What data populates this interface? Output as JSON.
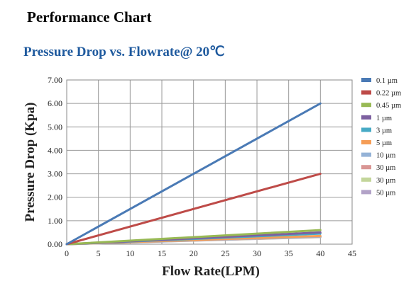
{
  "page": {
    "heading": "Performance Chart",
    "subtitle": "Pressure Drop vs. Flowrate@ 20℃"
  },
  "chart_data": {
    "type": "line",
    "xlabel": "Flow Rate(LPM)",
    "ylabel": "Pressure Drop (Kpa)",
    "xlim": [
      0,
      45
    ],
    "ylim": [
      0,
      7
    ],
    "xticks": [
      "0",
      "5",
      "10",
      "15",
      "20",
      "25",
      "30",
      "35",
      "40",
      "45"
    ],
    "yticks": [
      "0.00",
      "1.00",
      "2.00",
      "3.00",
      "4.00",
      "5.00",
      "6.00",
      "7.00"
    ],
    "grid": true,
    "legend_position": "right",
    "series": [
      {
        "name": "0.1 µm",
        "color": "#4a7ab5",
        "x": [
          0,
          40
        ],
        "y": [
          0,
          6.0
        ]
      },
      {
        "name": "0.22 µm",
        "color": "#be4b48",
        "x": [
          0,
          40
        ],
        "y": [
          0,
          3.0
        ]
      },
      {
        "name": "0.45 µm",
        "color": "#98b954",
        "x": [
          0,
          40
        ],
        "y": [
          0,
          0.6
        ]
      },
      {
        "name": "1 µm",
        "color": "#7d60a0",
        "x": [
          0,
          40
        ],
        "y": [
          0,
          0.5
        ]
      },
      {
        "name": "3 µm",
        "color": "#46aac5",
        "x": [
          0,
          40
        ],
        "y": [
          0,
          0.45
        ]
      },
      {
        "name": "5 µm",
        "color": "#f59d56",
        "x": [
          0,
          40
        ],
        "y": [
          0,
          0.35
        ]
      },
      {
        "name": "10 µm",
        "color": "#95b3d7",
        "x": [
          0,
          40
        ],
        "y": [
          0,
          0.33
        ]
      },
      {
        "name": "30 µm",
        "color": "#d99694",
        "x": [
          0,
          40
        ],
        "y": [
          0,
          0.32
        ]
      },
      {
        "name": "30 µm",
        "color": "#c3d69b",
        "x": [
          0,
          40
        ],
        "y": [
          0,
          0.31
        ]
      },
      {
        "name": "50 µm",
        "color": "#b2a2c7",
        "x": [
          0,
          40
        ],
        "y": [
          0,
          0.3
        ]
      }
    ]
  }
}
